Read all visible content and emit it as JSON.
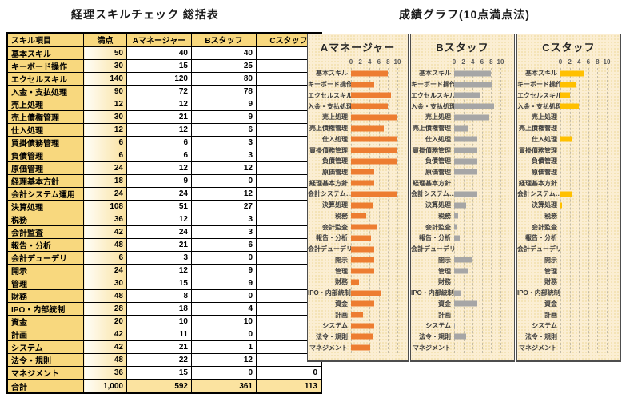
{
  "page": {
    "left_title": "経理スキルチェック 総括表",
    "right_title": "成績グラフ(10点満点法)"
  },
  "table": {
    "headers": [
      "スキル項目",
      "満点",
      "Aマネージャー",
      "Bスタッフ",
      "Cスタッフ"
    ],
    "rows": [
      [
        "基本スキル",
        "50",
        "40",
        "40",
        "25"
      ],
      [
        "キーボード操作",
        "30",
        "15",
        "25",
        "10"
      ],
      [
        "エクセルスキル",
        "140",
        "120",
        "80",
        "30"
      ],
      [
        "入金・支払処理",
        "90",
        "72",
        "78",
        "36"
      ],
      [
        "売上処理",
        "12",
        "12",
        "9",
        "0"
      ],
      [
        "売上債権管理",
        "30",
        "21",
        "9",
        "0"
      ],
      [
        "仕入処理",
        "12",
        "12",
        "6",
        "3"
      ],
      [
        "買掛債務管理",
        "6",
        "6",
        "3",
        "0"
      ],
      [
        "負債管理",
        "6",
        "6",
        "3",
        "0"
      ],
      [
        "原価管理",
        "24",
        "12",
        "12",
        "0"
      ],
      [
        "経理基本方針",
        "18",
        "9",
        "0",
        "0"
      ],
      [
        "会計システム運用",
        "24",
        "24",
        "12",
        "6"
      ],
      [
        "決算処理",
        "108",
        "51",
        "27",
        "3"
      ],
      [
        "税務",
        "36",
        "12",
        "3",
        "0"
      ],
      [
        "会計監査",
        "42",
        "24",
        "3",
        "0"
      ],
      [
        "報告・分析",
        "48",
        "21",
        "6",
        "0"
      ],
      [
        "会計デューデリ",
        "6",
        "3",
        "0",
        "0"
      ],
      [
        "開示",
        "24",
        "12",
        "9",
        "0"
      ],
      [
        "管理",
        "30",
        "15",
        "9",
        "0"
      ],
      [
        "財務",
        "48",
        "8",
        "0",
        "0"
      ],
      [
        "IPO・内部統制",
        "28",
        "18",
        "4",
        "0"
      ],
      [
        "資金",
        "20",
        "10",
        "10",
        "0"
      ],
      [
        "計画",
        "42",
        "11",
        "0",
        "0"
      ],
      [
        "システム",
        "42",
        "21",
        "1",
        "0"
      ],
      [
        "法令・規則",
        "48",
        "22",
        "12",
        "0"
      ],
      [
        "マネジメント",
        "36",
        "15",
        "0",
        "0"
      ]
    ],
    "total_row": [
      "合計",
      "1,000",
      "592",
      "361",
      "113"
    ]
  },
  "chart_data": [
    {
      "type": "bar",
      "orientation": "horizontal",
      "title": "Aマネージャー",
      "color": "#ED7D31",
      "xlim": [
        0,
        10
      ],
      "tick_labels": [
        "0",
        "2",
        "4",
        "6",
        "8",
        "10"
      ],
      "grid": "dashed-vertical",
      "categories": [
        "基本スキル",
        "キーボード操作",
        "エクセルスキル",
        "入金・支払処理",
        "売上処理",
        "売上債権管理",
        "仕入処理",
        "買掛債務管理",
        "負債管理",
        "原価管理",
        "経理基本方針",
        "会計システム…",
        "決算処理",
        "税務",
        "会計監査",
        "報告・分析",
        "会計デューデリ",
        "開示",
        "管理",
        "財務",
        "IPO・内部統制",
        "資金",
        "計画",
        "システム",
        "法令・規則",
        "マネジメント"
      ],
      "values": [
        8,
        5,
        8.57,
        8,
        10,
        7,
        10,
        10,
        10,
        5,
        5,
        10,
        4.72,
        3.33,
        5.71,
        4.38,
        5,
        5,
        5,
        1.67,
        6.43,
        5,
        2.62,
        5,
        4.58,
        4.17
      ]
    },
    {
      "type": "bar",
      "orientation": "horizontal",
      "title": "Bスタッフ",
      "color": "#A6A6A6",
      "xlim": [
        0,
        10
      ],
      "tick_labels": [
        "0",
        "2",
        "4",
        "6",
        "8",
        "10"
      ],
      "grid": "dashed-vertical",
      "categories": [
        "基本スキル",
        "キーボード操作",
        "エクセルスキル",
        "入金・支払処理",
        "売上処理",
        "売上債権管理",
        "仕入処理",
        "買掛債務管理",
        "負債管理",
        "原価管理",
        "経理基本方針",
        "会計システム…",
        "決算処理",
        "税務",
        "会計監査",
        "報告・分析",
        "会計デューデリ",
        "開示",
        "管理",
        "財務",
        "IPO・内部統制",
        "資金",
        "計画",
        "システム",
        "法令・規則",
        "マネジメント"
      ],
      "values": [
        8,
        8.33,
        5.71,
        8.67,
        7.5,
        3,
        5,
        5,
        5,
        5,
        0,
        5,
        2.5,
        0.83,
        0.71,
        1.25,
        0,
        3.75,
        3,
        0,
        1.43,
        5,
        0,
        0.24,
        2.5,
        0
      ]
    },
    {
      "type": "bar",
      "orientation": "horizontal",
      "title": "Cスタッフ",
      "color": "#FFC000",
      "xlim": [
        0,
        10
      ],
      "tick_labels": [
        "0",
        "2",
        "4",
        "6",
        "8",
        "10"
      ],
      "grid": "dashed-vertical",
      "categories": [
        "基本スキル",
        "キーボード操作",
        "エクセルスキル",
        "入金・支払処理",
        "売上処理",
        "売上債権管理",
        "仕入処理",
        "買掛債務管理",
        "負債管理",
        "原価管理",
        "経理基本方針",
        "会計システム…",
        "決算処理",
        "税務",
        "会計監査",
        "報告・分析",
        "会計デューデリ",
        "開示",
        "管理",
        "財務",
        "IPO・内部統制",
        "資金",
        "計画",
        "システム",
        "法令・規則",
        "マネジメント"
      ],
      "values": [
        5,
        3.33,
        2.14,
        4,
        0,
        0,
        2.5,
        0,
        0,
        0,
        0,
        2.5,
        0.28,
        0,
        0,
        0,
        0,
        0,
        0,
        0,
        0,
        0,
        0,
        0,
        0,
        0
      ]
    }
  ],
  "colors": {
    "table_header_bg": "#F8D87E",
    "table_total_bg": "#FBE3A0",
    "panel_bg": "#FBEED3",
    "bar_a": "#ED7D31",
    "bar_b": "#A6A6A6",
    "bar_c": "#FFC000"
  }
}
